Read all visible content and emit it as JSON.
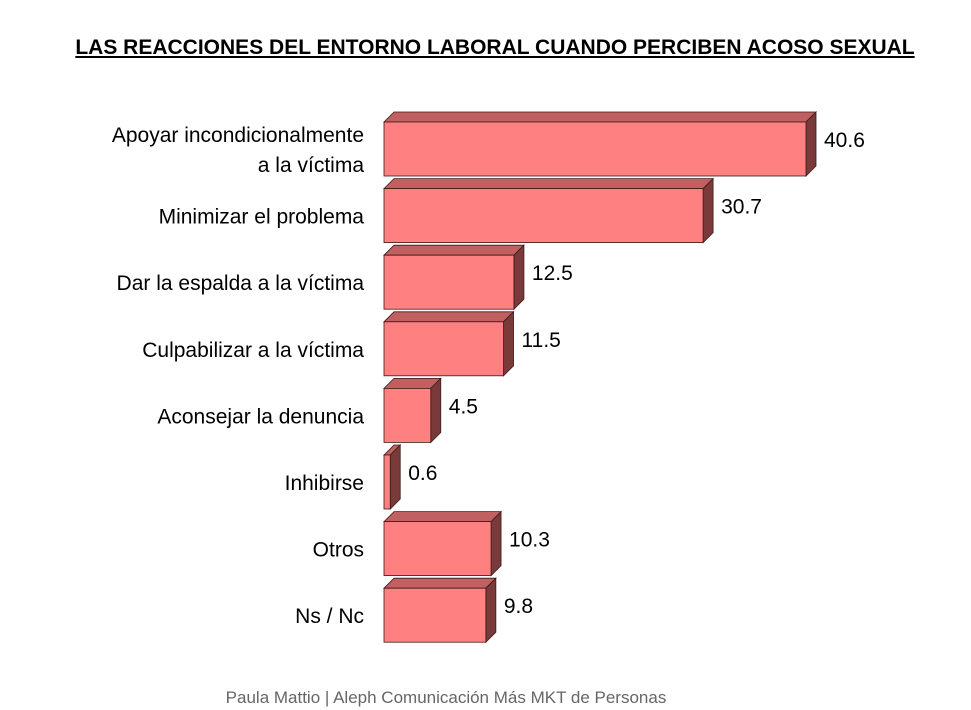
{
  "chart_data": {
    "type": "bar",
    "orientation": "horizontal",
    "style": "3d",
    "title": "LAS REACCIONES DEL ENTORNO LABORAL CUANDO PERCIBEN ACOSO SEXUAL",
    "categories": [
      [
        "Apoyar incondicionalmente",
        "a la víctima"
      ],
      [
        "Minimizar el problema"
      ],
      [
        "Dar la espalda a la víctima"
      ],
      [
        "Culpabilizar a la víctima"
      ],
      [
        "Aconsejar la denuncia"
      ],
      [
        "Inhibirse"
      ],
      [
        "Otros"
      ],
      [
        "Ns / Nc"
      ]
    ],
    "values": [
      40.6,
      30.7,
      12.5,
      11.5,
      4.5,
      0.6,
      10.3,
      9.8
    ],
    "value_labels": [
      "40.6",
      "30.7",
      "12.5",
      "11.5",
      "4.5",
      "0.6",
      "10.3",
      "9.8"
    ],
    "xlim": [
      0,
      40.6
    ],
    "grid": false,
    "colors": {
      "bar_front": "#ff8080",
      "bar_top": "#c06060",
      "bar_side": "#7a3a3a",
      "outline": "#3a1a1a"
    }
  },
  "footer": "Paula Mattio | Aleph Comunicación Más MKT de Personas"
}
